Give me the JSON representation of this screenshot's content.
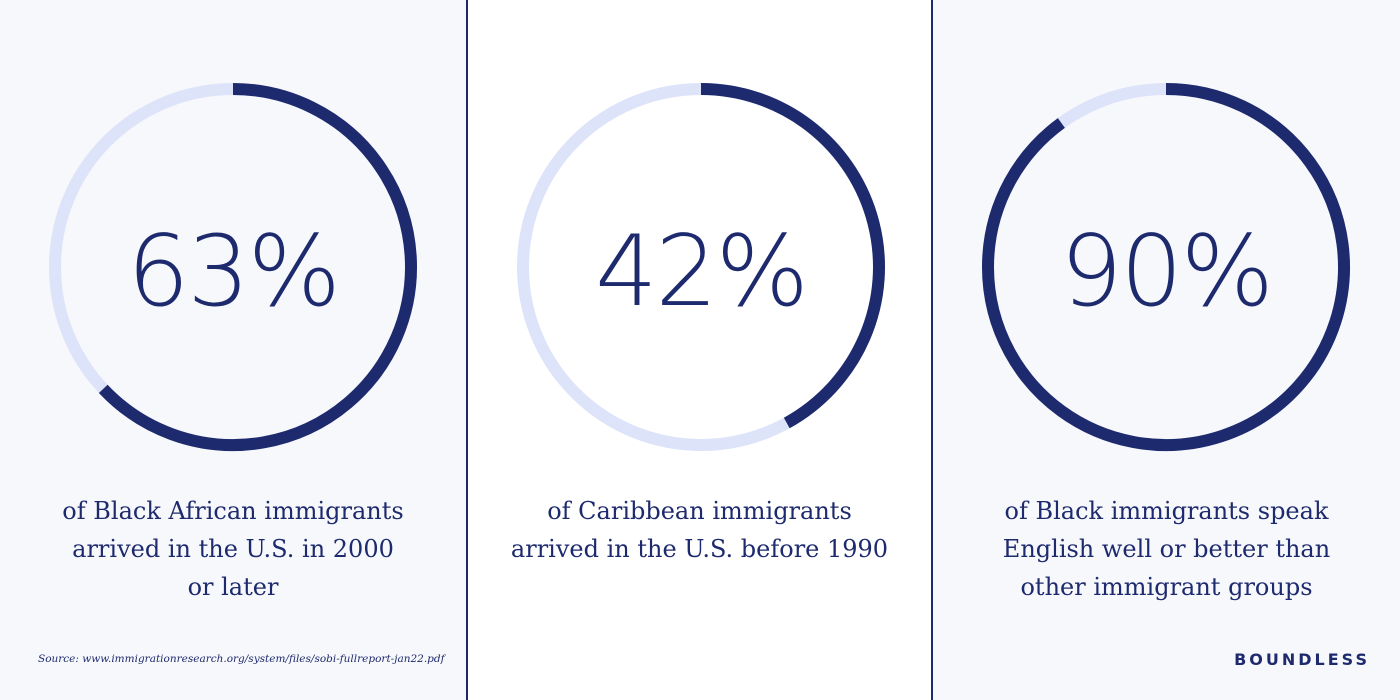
{
  "colors": {
    "accent": "#1e2a6e",
    "track": "#dde3f9",
    "panel_tint": "#f7f8fb",
    "panel_white": "#ffffff"
  },
  "chart_data": [
    {
      "type": "pie",
      "value": 63,
      "label": "63%",
      "caption": [
        "of Black African immigrants",
        "arrived in the U.S. in 2000",
        "or later"
      ]
    },
    {
      "type": "pie",
      "value": 42,
      "label": "42%",
      "caption": [
        "of Caribbean immigrants",
        "arrived in the U.S. before 1990"
      ]
    },
    {
      "type": "pie",
      "value": 90,
      "label": "90%",
      "caption": [
        "of Black immigrants speak",
        "English well or better than",
        "other immigrant groups"
      ]
    }
  ],
  "footer": {
    "source": "Source: www.immigrationresearch.org/system/files/sobi-fullreport-jan22.pdf",
    "brand": "BOUNDLESS"
  }
}
